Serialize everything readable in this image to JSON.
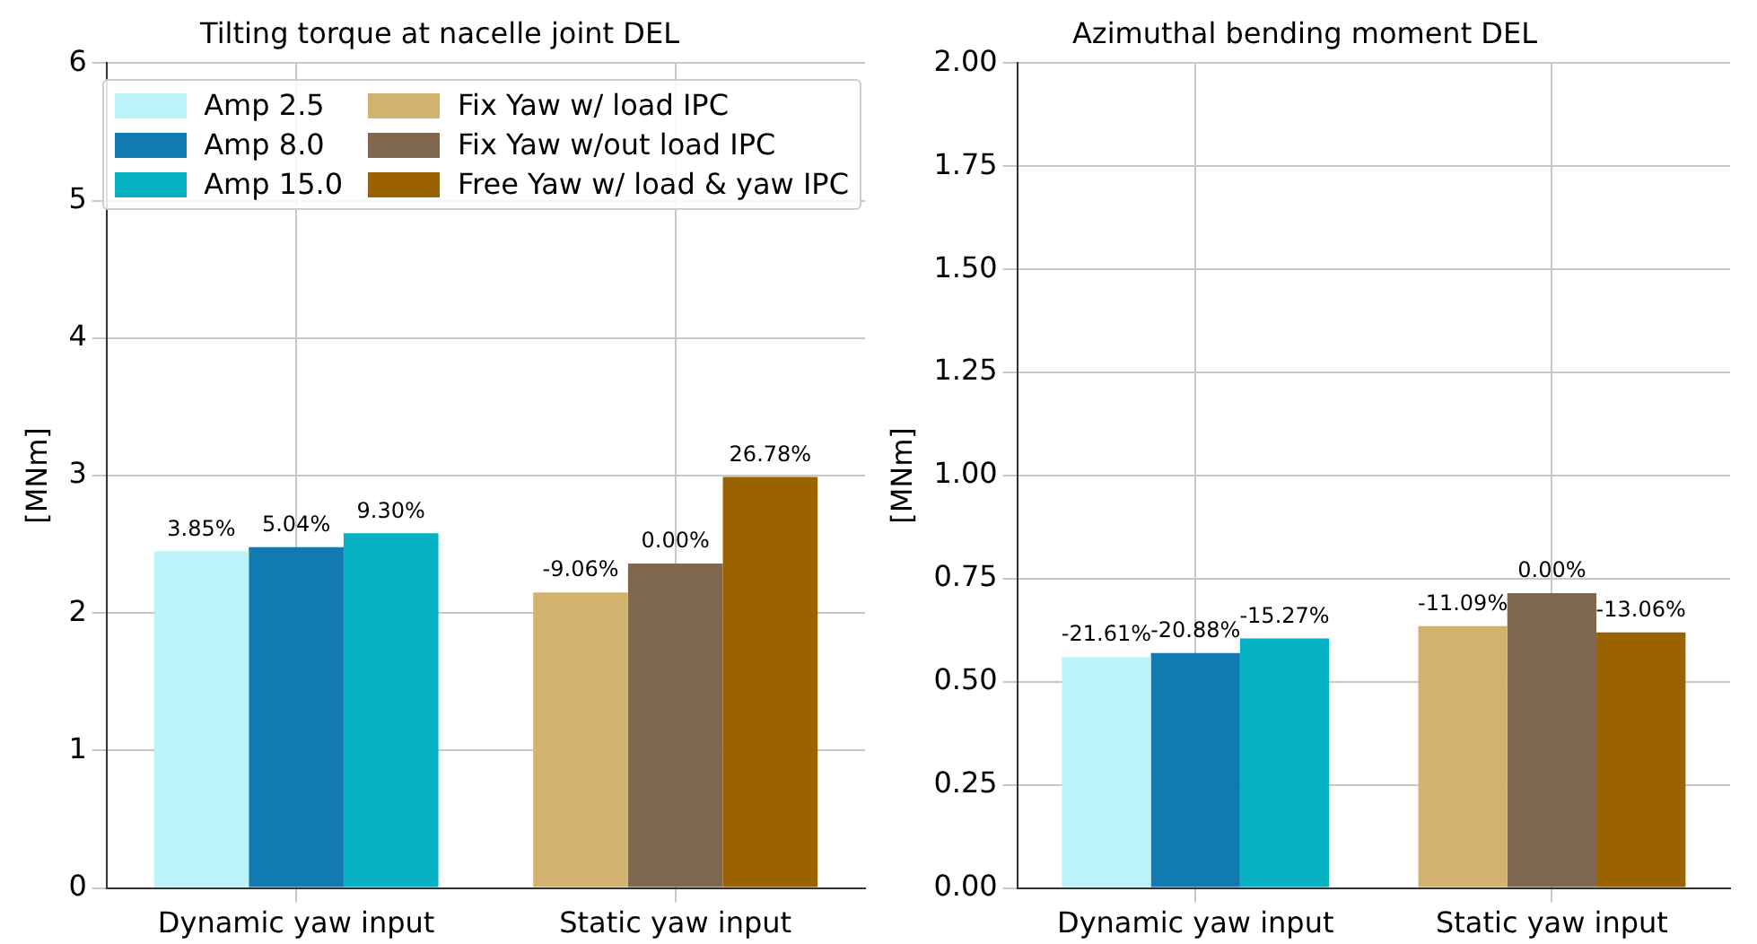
{
  "chart_data": [
    {
      "type": "bar",
      "title": "Tilting torque at nacelle joint DEL",
      "ylabel": "[MNm]",
      "categories": [
        "Dynamic yaw input",
        "Static yaw input"
      ],
      "ylim": [
        0,
        6
      ],
      "yticks": [
        0,
        1,
        2,
        3,
        4,
        5,
        6
      ],
      "grid": true,
      "legend": "top right",
      "series": [
        {
          "name": "Amp 2.5",
          "color": "#bdf4fc",
          "values": [
            2.45,
            null
          ]
        },
        {
          "name": "Amp 8.0",
          "color": "#117ab1",
          "values": [
            2.48,
            null
          ]
        },
        {
          "name": "Amp 15.0",
          "color": "#07b1c4",
          "values": [
            2.58,
            null
          ]
        },
        {
          "name": "Fix Yaw w/ load IPC",
          "color": "#d1b26f",
          "values": [
            null,
            2.15
          ]
        },
        {
          "name": "Fix Yaw w/out load IPC",
          "color": "#7f684e",
          "values": [
            null,
            2.36
          ]
        },
        {
          "name": "Free Yaw w/ load & yaw IPC",
          "color": "#9a6200",
          "values": [
            null,
            2.99
          ]
        }
      ],
      "annotations": [
        "3.85%",
        "5.04%",
        "9.30%",
        "-9.06%",
        "0.00%",
        "26.78%"
      ]
    },
    {
      "type": "bar",
      "title": "Azimuthal bending moment DEL",
      "ylabel": "[MNm]",
      "categories": [
        "Dynamic yaw input",
        "Static yaw input"
      ],
      "ylim": [
        0,
        2
      ],
      "yticks": [
        {
          "value": 0,
          "label": "0.00"
        },
        0.25,
        {
          "value": 0.5,
          "label": "0.50"
        },
        0.75,
        {
          "value": 1,
          "label": "1.00"
        },
        1.25,
        {
          "value": 1.5,
          "label": "1.50"
        },
        1.75,
        {
          "value": 2,
          "label": "2.00"
        }
      ],
      "grid": true,
      "series": [
        {
          "color": "#bdf4fc",
          "values": [
            0.56,
            null
          ]
        },
        {
          "color": "#117ab1",
          "values": [
            0.57,
            null
          ]
        },
        {
          "color": "#07b1c4",
          "values": [
            0.605,
            null
          ]
        },
        {
          "color": "#d1b26f",
          "values": [
            null,
            0.635
          ]
        },
        {
          "color": "#7f684e",
          "values": [
            null,
            0.715
          ]
        },
        {
          "color": "#9a6200",
          "values": [
            null,
            0.62
          ]
        }
      ],
      "annotations": [
        "-21.61%",
        "-20.88%",
        "-15.27%",
        "-11.09%",
        "0.00%",
        "-13.06%"
      ]
    }
  ]
}
